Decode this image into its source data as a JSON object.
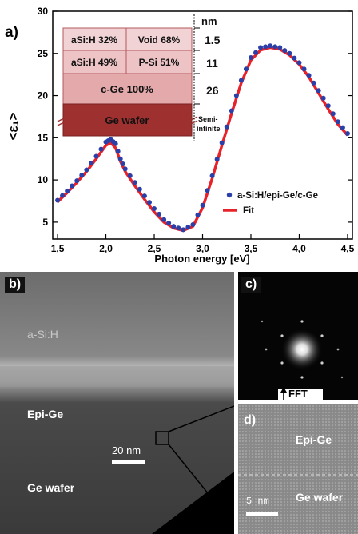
{
  "panel_a": {
    "label": "a)",
    "inset": {
      "layers": [
        {
          "cells": [
            "aSi:H 32%",
            "Void 68%"
          ],
          "thickness": "1.5"
        },
        {
          "cells": [
            "aSi:H 49%",
            "P-Si 51%"
          ],
          "thickness": "11"
        },
        {
          "cells": [
            "c-Ge 100%"
          ],
          "thickness": "26"
        },
        {
          "cells": [
            "Ge wafer"
          ],
          "thickness": "Semi-infinite"
        }
      ],
      "unit": "nm",
      "colors": {
        "light": "#f2d3d5",
        "mid": "#e3a9ab",
        "dark": "#9e3030"
      }
    }
  },
  "chart_data": {
    "type": "line",
    "xlabel": "Photon energy [eV]",
    "ylabel": "<ε₁>",
    "xlim": [
      1.45,
      4.55
    ],
    "ylim": [
      3,
      30
    ],
    "xticks": [
      "1,5",
      "2,0",
      "2,5",
      "3,0",
      "3,5",
      "4,0",
      "4,5"
    ],
    "yticks": [
      "5",
      "10",
      "15",
      "20",
      "25",
      "30"
    ],
    "legend_position": "lower-right",
    "series": [
      {
        "name": "a-Si:H/epi-Ge/c-Ge",
        "style": "markers",
        "color": "#2a3fa8",
        "x": [
          1.5,
          1.6,
          1.7,
          1.8,
          1.9,
          2.0,
          2.05,
          2.1,
          2.15,
          2.2,
          2.3,
          2.4,
          2.5,
          2.6,
          2.7,
          2.8,
          2.9,
          3.0,
          3.1,
          3.2,
          3.3,
          3.4,
          3.5,
          3.6,
          3.7,
          3.8,
          3.9,
          4.0,
          4.1,
          4.2,
          4.3,
          4.4,
          4.5
        ],
        "y": [
          7.6,
          8.7,
          9.9,
          11.2,
          12.8,
          14.5,
          14.8,
          14.3,
          12.5,
          11.3,
          9.7,
          8.1,
          6.6,
          5.3,
          4.5,
          4.1,
          4.7,
          7.0,
          10.5,
          14.4,
          18.2,
          21.8,
          24.5,
          25.7,
          25.9,
          25.7,
          25.0,
          23.9,
          22.4,
          20.6,
          18.8,
          16.9,
          15.5
        ]
      },
      {
        "name": "Fit",
        "style": "line",
        "color": "#e8222a",
        "x": [
          1.5,
          1.6,
          1.7,
          1.8,
          1.9,
          2.0,
          2.05,
          2.1,
          2.15,
          2.2,
          2.3,
          2.4,
          2.5,
          2.6,
          2.7,
          2.8,
          2.9,
          3.0,
          3.1,
          3.2,
          3.3,
          3.4,
          3.5,
          3.6,
          3.7,
          3.8,
          3.9,
          4.0,
          4.1,
          4.2,
          4.3,
          4.4,
          4.5
        ],
        "y": [
          7.4,
          8.5,
          9.7,
          11.0,
          12.5,
          14.1,
          14.4,
          13.8,
          12.2,
          11.0,
          9.3,
          7.7,
          6.2,
          5.0,
          4.3,
          4.0,
          4.5,
          6.7,
          10.2,
          14.1,
          17.9,
          21.5,
          24.2,
          25.4,
          25.7,
          25.5,
          24.8,
          23.7,
          22.2,
          20.3,
          18.4,
          16.6,
          15.3
        ]
      }
    ]
  },
  "panel_b": {
    "label": "b)",
    "layers": [
      "a-Si:H",
      "Epi-Ge",
      "Ge wafer"
    ],
    "scale_bar": "20 nm"
  },
  "panel_c": {
    "label": "c)",
    "caption": "FFT"
  },
  "panel_d": {
    "label": "d)",
    "layers": [
      "Epi-Ge",
      "Ge wafer"
    ],
    "scale_bar": "5 nm"
  }
}
